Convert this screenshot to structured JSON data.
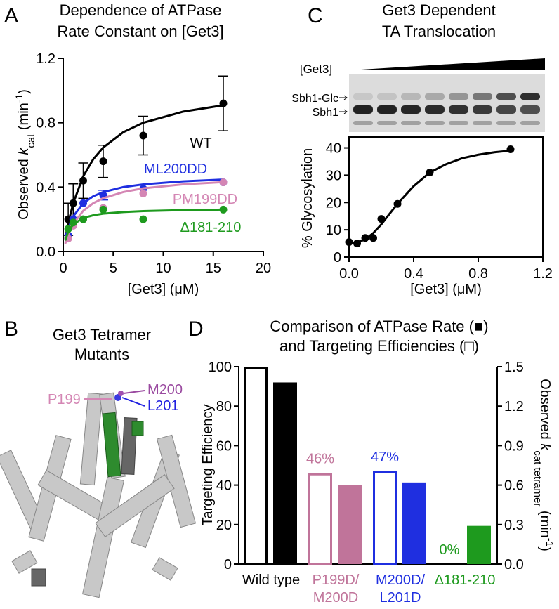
{
  "chart_data": [
    {
      "panel": "A",
      "type": "scatter",
      "title": [
        "Dependence of ATPase",
        "Rate Constant on [Get3]"
      ],
      "xlabel": "[Get3] (μM)",
      "ylabel": [
        "Observed ",
        "k",
        "cat",
        " (min",
        "-1",
        ")"
      ],
      "xlim": [
        0,
        20
      ],
      "ylim": [
        0,
        1.2
      ],
      "xticks": [
        0,
        5,
        10,
        15,
        20
      ],
      "yticks": [
        {
          "value": 0,
          "label": "0.0"
        },
        0.4,
        0.8,
        1.2
      ],
      "frame": false,
      "series": [
        {
          "name": "WT",
          "color": "#000000",
          "x": [
            0.5,
            1,
            2,
            4,
            8,
            16
          ],
          "values": [
            0.2,
            0.3,
            0.44,
            0.56,
            0.72,
            0.92
          ],
          "errors": [
            0.1,
            0.12,
            0.11,
            0.1,
            0.12,
            0.17
          ],
          "fit": {
            "x": [
              0.2,
              0.5,
              1,
              2,
              3,
              4,
              6,
              8,
              12,
              16
            ],
            "y": [
              0.078,
              0.175,
              0.3,
              0.467,
              0.573,
              0.646,
              0.741,
              0.8,
              0.869,
              0.908
            ]
          }
        },
        {
          "name": "ML200DD",
          "color": "#1f2fe0",
          "x": [
            0.5,
            1,
            2,
            4,
            8,
            16
          ],
          "values": [
            0.1,
            0.2,
            0.3,
            0.35,
            0.39,
            0.43
          ],
          "errors": [
            null,
            null,
            null,
            0.03,
            null,
            null
          ],
          "fit": {
            "x": [
              0.2,
              0.5,
              1,
              2,
              3,
              4,
              6,
              8,
              12,
              16
            ],
            "y": [
              0.069,
              0.141,
              0.218,
              0.3,
              0.343,
              0.369,
              0.4,
              0.417,
              0.436,
              0.447
            ]
          }
        },
        {
          "name": "PM199DD",
          "color": "#d486b4",
          "x": [
            0.5,
            1,
            2,
            4,
            8,
            16
          ],
          "values": [
            0.08,
            0.16,
            0.2,
            0.27,
            0.36,
            0.43
          ],
          "errors": [
            null,
            null,
            null,
            null,
            null,
            null
          ],
          "fit": {
            "x": [
              0.2,
              0.5,
              1,
              2,
              3,
              4,
              6,
              8,
              12,
              16
            ],
            "y": [
              0.048,
              0.104,
              0.171,
              0.253,
              0.3,
              0.331,
              0.369,
              0.392,
              0.417,
              0.431
            ]
          }
        },
        {
          "name": "Δ181-210",
          "color": "#1e9a1e",
          "x": [
            0.5,
            1,
            2,
            4,
            8,
            16
          ],
          "values": [
            0.14,
            0.18,
            0.2,
            0.26,
            0.2,
            0.26
          ],
          "errors": [
            null,
            null,
            null,
            null,
            null,
            null
          ],
          "fit": {
            "x": [
              0.2,
              0.5,
              1,
              2,
              3,
              4,
              6,
              8,
              12,
              16
            ],
            "y": [
              0.068,
              0.123,
              0.169,
              0.208,
              0.225,
              0.235,
              0.245,
              0.251,
              0.257,
              0.26
            ]
          }
        }
      ]
    },
    {
      "panel": "C",
      "type": "scatter",
      "title": [
        "Get3 Dependent",
        "TA Translocation"
      ],
      "gel": {
        "label": "[Get3]",
        "bands": [
          "Sbh1-Glc",
          "Sbh1"
        ]
      },
      "xlabel": "[Get3] (μM)",
      "ylabel": [
        "% Glycosylation"
      ],
      "xlim": [
        0,
        1.2
      ],
      "ylim": [
        0,
        44
      ],
      "xticks": [
        {
          "value": 0,
          "label": "0.0"
        },
        0.4,
        0.8,
        1.2
      ],
      "yticks": [
        0,
        10,
        20,
        30,
        40
      ],
      "frame": true,
      "series": [
        {
          "color": "#000000",
          "x": [
            0,
            0.05,
            0.1,
            0.15,
            0.2,
            0.3,
            0.5,
            1.0
          ],
          "values": [
            5.5,
            5,
            7,
            7,
            14,
            19.5,
            31,
            39.5
          ],
          "fit": {
            "x": [
              0,
              0.05,
              0.1,
              0.15,
              0.2,
              0.25,
              0.3,
              0.4,
              0.5,
              0.6,
              0.7,
              0.8,
              0.9,
              1.0
            ],
            "y": [
              5,
              5.3,
              6.5,
              8.8,
              12,
              15.8,
              19.5,
              26,
              31,
              34,
              36.2,
              37.5,
              38.4,
              39
            ]
          }
        }
      ]
    },
    {
      "panel": "D",
      "type": "bar",
      "title": [
        "Comparison of ATPase Rate (■)",
        "and Targeting Efficiencies (□)"
      ],
      "categories": [
        [
          "Wild type"
        ],
        [
          "P199D/",
          "M200D"
        ],
        [
          "M200D/",
          "L201D"
        ],
        [
          "Δ181-210"
        ]
      ],
      "colors": [
        "#000000",
        "#c0749a",
        "#1f2fe0",
        "#1e9a1e"
      ],
      "ylabel": [
        "Targeting Efficiency"
      ],
      "y2label": [
        "Observed ",
        "k",
        "cat tetramer",
        " (min",
        "-1",
        ")"
      ],
      "ylim": [
        0,
        100
      ],
      "yticks": [
        0,
        20,
        40,
        60,
        80,
        100
      ],
      "y2lim": [
        0,
        1.5
      ],
      "y2ticks": [
        {
          "value": 0,
          "label": "0.0"
        },
        0.3,
        0.6,
        0.9,
        1.2,
        1.5
      ],
      "series": [
        {
          "fill": false,
          "values": [
            100,
            46,
            47,
            0
          ],
          "value_labels": [
            null,
            "46%",
            "47%",
            "0%"
          ]
        },
        {
          "fill": true,
          "axis": "y2",
          "values": [
            1.38,
            0.6,
            0.62,
            0.29
          ]
        }
      ]
    }
  ],
  "structure": {
    "panel": "B",
    "title": [
      "Get3 Tetramer",
      "Mutants"
    ],
    "residues": [
      "P199",
      "M200",
      "L201"
    ]
  }
}
